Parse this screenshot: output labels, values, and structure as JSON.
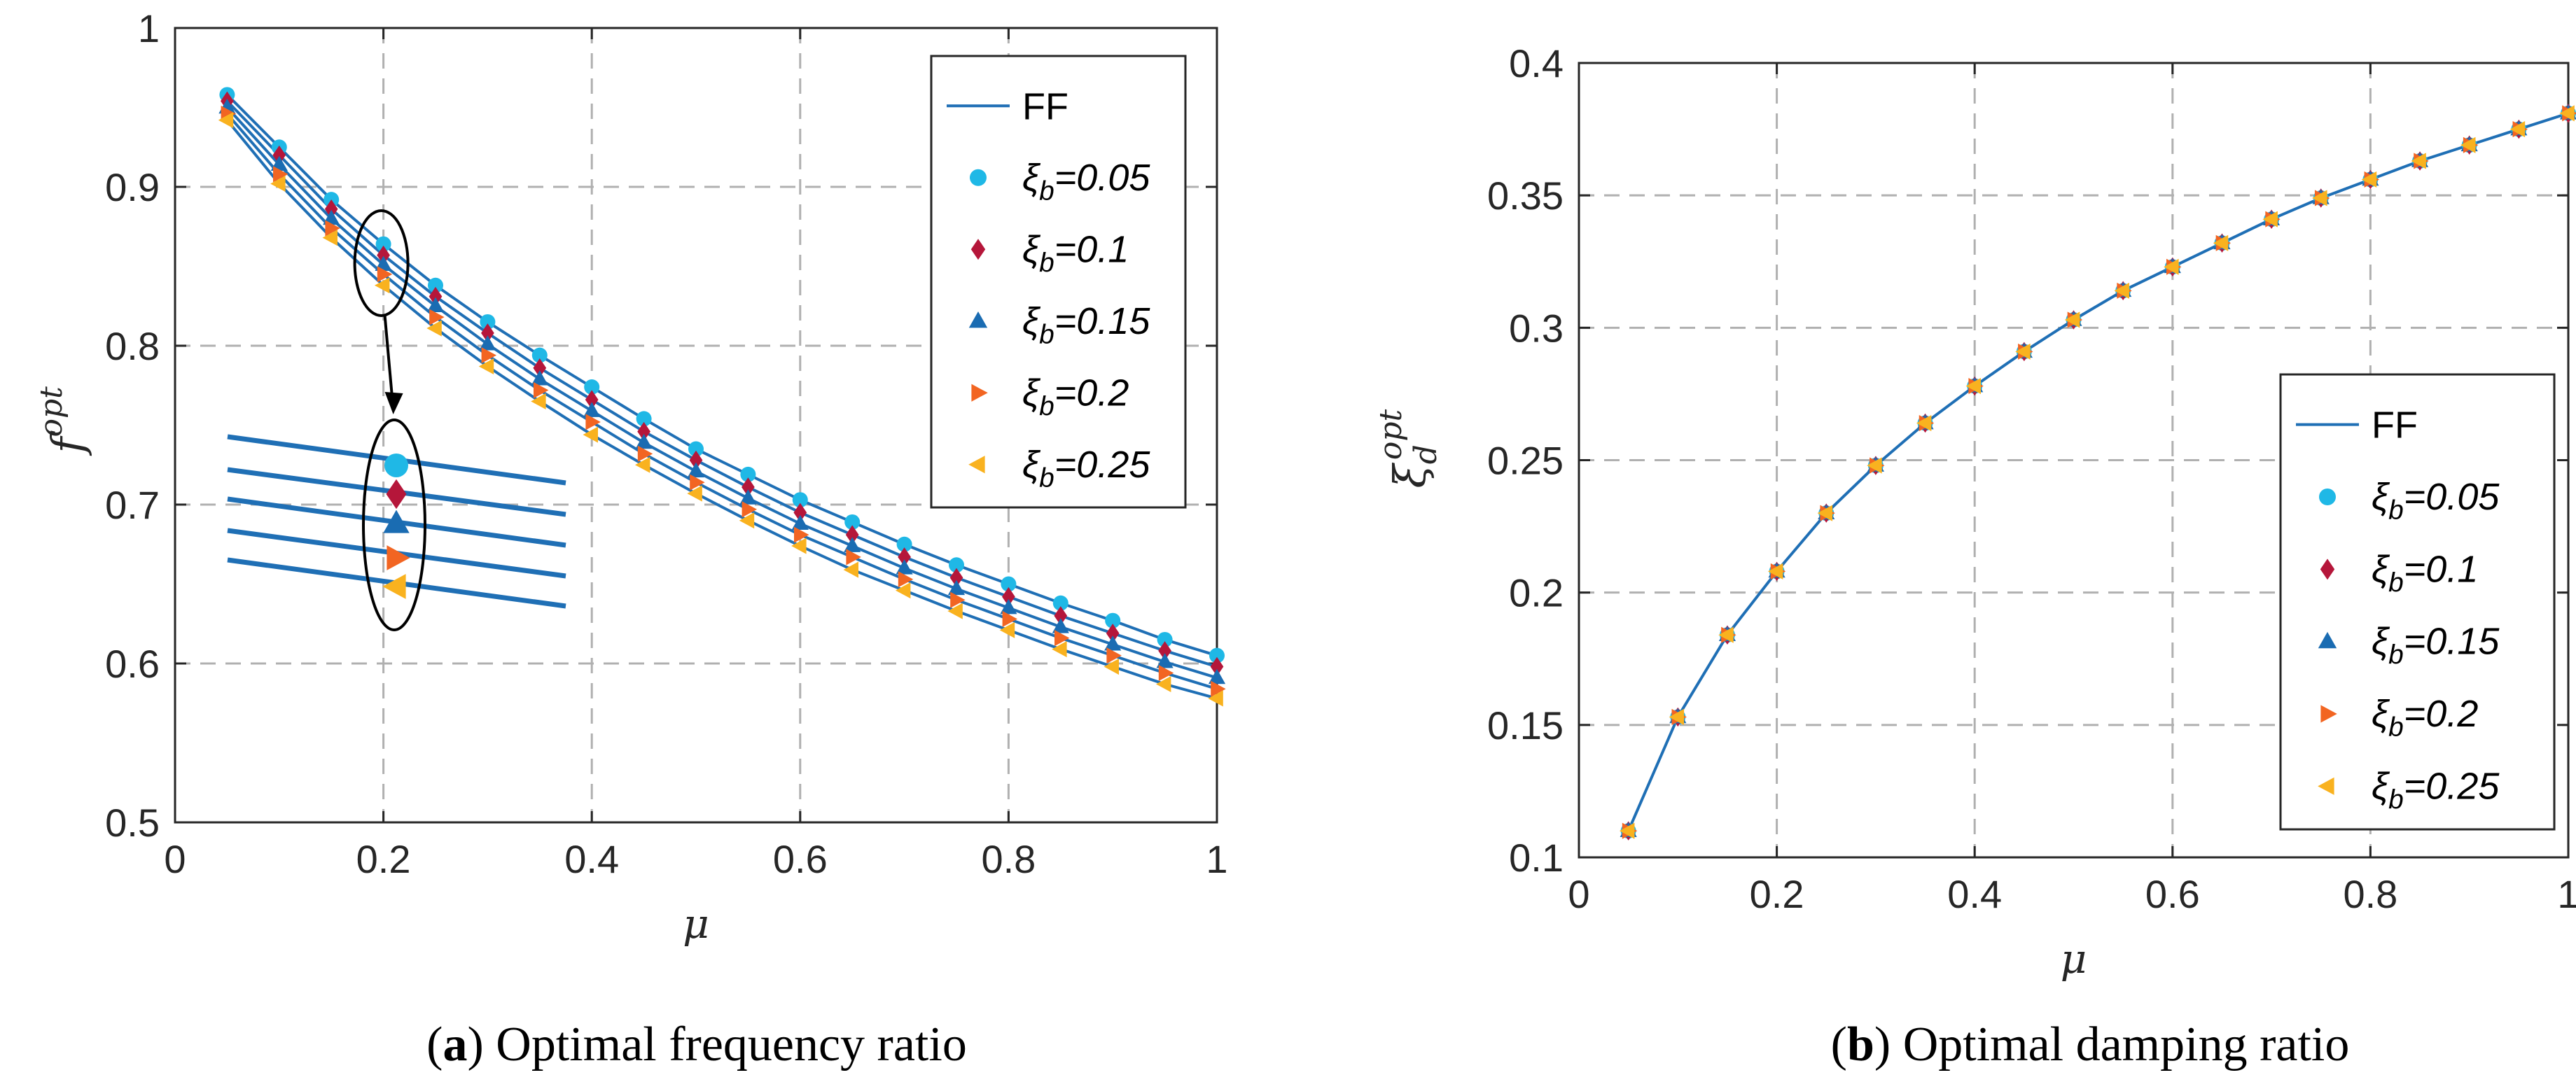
{
  "chart_data": [
    {
      "type": "line",
      "caption_letter": "a",
      "caption": " Optimal frequency ratio",
      "xlabel": "μ",
      "ylabel": "f",
      "ylabel_sup": "opt",
      "xlim": [
        0,
        1
      ],
      "ylim": [
        0.5,
        1
      ],
      "xticks": [
        "0",
        "0.2",
        "0.4",
        "0.6",
        "0.8",
        "1"
      ],
      "yticks": [
        "0.5",
        "0.6",
        "0.7",
        "0.8",
        "0.9",
        "1"
      ],
      "grid": true,
      "legend_position": "top-right",
      "x": [
        0.05,
        0.1,
        0.15,
        0.2,
        0.25,
        0.3,
        0.35,
        0.4,
        0.45,
        0.5,
        0.55,
        0.6,
        0.65,
        0.7,
        0.75,
        0.8,
        0.85,
        0.9,
        0.95,
        1.0
      ],
      "series": [
        {
          "name": "FF",
          "legend": "FF",
          "values": [
            0.958,
            0.925,
            0.892,
            0.864,
            0.838,
            0.815,
            0.794,
            0.774,
            0.754,
            0.735,
            0.719,
            0.703,
            0.689,
            0.675,
            0.662,
            0.65,
            0.638,
            0.627,
            0.615,
            0.605
          ]
        },
        {
          "name": "0.05",
          "values": [
            0.958,
            0.925,
            0.892,
            0.864,
            0.838,
            0.815,
            0.794,
            0.774,
            0.754,
            0.735,
            0.719,
            0.703,
            0.689,
            0.675,
            0.662,
            0.65,
            0.638,
            0.627,
            0.615,
            0.605
          ]
        },
        {
          "name": "0.1",
          "values": [
            0.954,
            0.92,
            0.886,
            0.857,
            0.831,
            0.808,
            0.786,
            0.766,
            0.746,
            0.728,
            0.711,
            0.695,
            0.681,
            0.667,
            0.654,
            0.642,
            0.63,
            0.619,
            0.608,
            0.598
          ]
        },
        {
          "name": "0.15",
          "values": [
            0.95,
            0.914,
            0.88,
            0.851,
            0.825,
            0.801,
            0.779,
            0.759,
            0.739,
            0.721,
            0.704,
            0.688,
            0.674,
            0.66,
            0.647,
            0.635,
            0.623,
            0.612,
            0.601,
            0.591
          ]
        },
        {
          "name": "0.2",
          "values": [
            0.946,
            0.908,
            0.874,
            0.845,
            0.818,
            0.794,
            0.772,
            0.752,
            0.732,
            0.714,
            0.697,
            0.681,
            0.667,
            0.653,
            0.64,
            0.628,
            0.616,
            0.605,
            0.594,
            0.584
          ]
        },
        {
          "name": "0.25",
          "values": [
            0.942,
            0.902,
            0.868,
            0.838,
            0.811,
            0.787,
            0.765,
            0.744,
            0.725,
            0.707,
            0.69,
            0.674,
            0.659,
            0.646,
            0.633,
            0.621,
            0.609,
            0.598,
            0.587,
            0.578
          ]
        }
      ],
      "legend": {
        "ff": "FF",
        "items": [
          {
            "sym": "ξ",
            "sub": "b",
            "value": "=0.05",
            "color": "#1fb8e6",
            "marker": "circle"
          },
          {
            "sym": "ξ",
            "sub": "b",
            "value": "=0.1",
            "color": "#b5163a",
            "marker": "diamond"
          },
          {
            "sym": "ξ",
            "sub": "b",
            "value": "=0.15",
            "color": "#1a6cb2",
            "marker": "triangle-up"
          },
          {
            "sym": "ξ",
            "sub": "b",
            "value": "=0.2",
            "color": "#f26522",
            "marker": "triangle-right"
          },
          {
            "sym": "ξ",
            "sub": "b",
            "value": "=0.25",
            "color": "#f9b21f",
            "marker": "triangle-left"
          }
        ]
      },
      "annotation": "zoomed inset of the series near μ = 0.2 (ellipse with arrow)"
    },
    {
      "type": "line",
      "caption_letter": "b",
      "caption": " Optimal damping ratio",
      "xlabel": "μ",
      "ylabel": "ξ",
      "ylabel_sub": "d",
      "ylabel_sup": "opt",
      "xlim": [
        0,
        1
      ],
      "ylim": [
        0.1,
        0.4
      ],
      "xticks": [
        "0",
        "0.2",
        "0.4",
        "0.6",
        "0.8",
        "1"
      ],
      "yticks": [
        "0.1",
        "0.15",
        "0.2",
        "0.25",
        "0.3",
        "0.35",
        "0.4"
      ],
      "grid": true,
      "legend_position": "center-right",
      "x": [
        0.05,
        0.1,
        0.15,
        0.2,
        0.25,
        0.3,
        0.35,
        0.4,
        0.45,
        0.5,
        0.55,
        0.6,
        0.65,
        0.7,
        0.75,
        0.8,
        0.85,
        0.9,
        0.95,
        1.0
      ],
      "series": [
        {
          "name": "FF",
          "values": [
            0.11,
            0.153,
            0.184,
            0.208,
            0.23,
            0.248,
            0.264,
            0.278,
            0.291,
            0.303,
            0.314,
            0.323,
            0.332,
            0.341,
            0.349,
            0.356,
            0.363,
            0.369,
            0.375,
            0.381
          ]
        }
      ],
      "legend": {
        "ff": "FF",
        "items": [
          {
            "sym": "ξ",
            "sub": "b",
            "value": "=0.05",
            "color": "#1fb8e6",
            "marker": "circle"
          },
          {
            "sym": "ξ",
            "sub": "b",
            "value": "=0.1",
            "color": "#b5163a",
            "marker": "diamond"
          },
          {
            "sym": "ξ",
            "sub": "b",
            "value": "=0.15",
            "color": "#1a6cb2",
            "marker": "triangle-up"
          },
          {
            "sym": "ξ",
            "sub": "b",
            "value": "=0.2",
            "color": "#f26522",
            "marker": "triangle-right"
          },
          {
            "sym": "ξ",
            "sub": "b",
            "value": "=0.25",
            "color": "#f9b21f",
            "marker": "triangle-left"
          }
        ]
      }
    }
  ],
  "colors": {
    "line": "#1f6fb5",
    "grid": "#b0b0b0"
  }
}
